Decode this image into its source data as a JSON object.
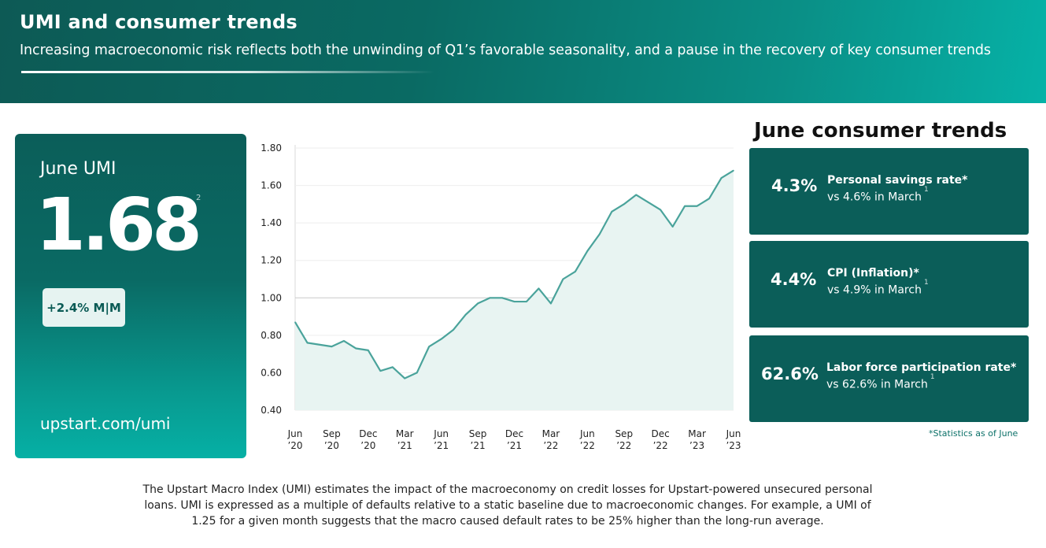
{
  "header": {
    "title": "UMI and consumer trends",
    "subtitle": "Increasing macroeconomic risk reflects both the unwinding of Q1’s favorable seasonality, and a pause in the recovery of key consumer trends"
  },
  "umi_card": {
    "label": "June UMI",
    "value": "1.68",
    "superscript": "2",
    "change_badge": "+2.4% M|M",
    "link": "upstart.com/umi"
  },
  "trends": {
    "title": "June consumer trends",
    "cards": [
      {
        "value": "4.3%",
        "label": "Personal savings rate*",
        "comparison": "vs 4.6% in March",
        "note": "1"
      },
      {
        "value": "4.4%",
        "label": "CPI (Inflation)*",
        "comparison": "vs 4.9% in March",
        "note": "1"
      },
      {
        "value": "62.6%",
        "label": "Labor force participation rate*",
        "comparison": "vs 62.6% in March",
        "note": "1"
      }
    ],
    "footnote": "*Statistics as of June"
  },
  "description": "The Upstart Macro Index (UMI) estimates the impact of the macroeconomy on credit losses for Upstart-powered unsecured personal loans. UMI is expressed as a multiple of defaults relative to a static baseline due to macroeconomic changes. For example, a UMI of 1.25 for a given month suggests that the macro caused default rates to be 25% higher than the long-run average.",
  "colors": {
    "brand_dark": "#0b5e59",
    "line": "#4aa39b",
    "area": "#e8f4f2",
    "badge_bg": "#e6f3f1"
  },
  "chart_data": {
    "type": "area",
    "ylim": [
      0.4,
      1.8
    ],
    "yticks": [
      "1.80",
      "1.60",
      "1.40",
      "1.20",
      "1.00",
      "0.80",
      "0.60",
      "0.40"
    ],
    "ytick_values": [
      1.8,
      1.6,
      1.4,
      1.2,
      1.0,
      0.8,
      0.6,
      0.4
    ],
    "reference_line": 1.0,
    "xticks": [
      {
        "month": "Jun",
        "year": "’20",
        "index": 0
      },
      {
        "month": "Sep",
        "year": "’20",
        "index": 3
      },
      {
        "month": "Dec",
        "year": "’20",
        "index": 6
      },
      {
        "month": "Mar",
        "year": "’21",
        "index": 9
      },
      {
        "month": "Jun",
        "year": "’21",
        "index": 12
      },
      {
        "month": "Sep",
        "year": "’21",
        "index": 15
      },
      {
        "month": "Dec",
        "year": "’21",
        "index": 18
      },
      {
        "month": "Mar",
        "year": "’22",
        "index": 21
      },
      {
        "month": "Jun",
        "year": "’22",
        "index": 24
      },
      {
        "month": "Sep",
        "year": "’22",
        "index": 27
      },
      {
        "month": "Dec",
        "year": "’22",
        "index": 30
      },
      {
        "month": "Mar",
        "year": "’23",
        "index": 33
      },
      {
        "month": "Jun",
        "year": "’23",
        "index": 36
      }
    ],
    "x": [
      "Jun 2020",
      "Jul 2020",
      "Aug 2020",
      "Sep 2020",
      "Oct 2020",
      "Nov 2020",
      "Dec 2020",
      "Jan 2021",
      "Feb 2021",
      "Mar 2021",
      "Apr 2021",
      "May 2021",
      "Jun 2021",
      "Jul 2021",
      "Aug 2021",
      "Sep 2021",
      "Oct 2021",
      "Nov 2021",
      "Dec 2021",
      "Jan 2022",
      "Feb 2022",
      "Mar 2022",
      "Apr 2022",
      "May 2022",
      "Jun 2022",
      "Jul 2022",
      "Aug 2022",
      "Sep 2022",
      "Oct 2022",
      "Nov 2022",
      "Dec 2022",
      "Jan 2023",
      "Feb 2023",
      "Mar 2023",
      "Apr 2023",
      "May 2023",
      "Jun 2023"
    ],
    "values": [
      0.87,
      0.76,
      0.75,
      0.74,
      0.77,
      0.73,
      0.72,
      0.61,
      0.63,
      0.57,
      0.6,
      0.74,
      0.78,
      0.83,
      0.91,
      0.97,
      1.0,
      1.0,
      0.98,
      0.98,
      1.05,
      0.97,
      1.1,
      1.14,
      1.25,
      1.34,
      1.46,
      1.5,
      1.55,
      1.51,
      1.47,
      1.38,
      1.49,
      1.49,
      1.53,
      1.64,
      1.68
    ],
    "grid": "horizontal"
  }
}
